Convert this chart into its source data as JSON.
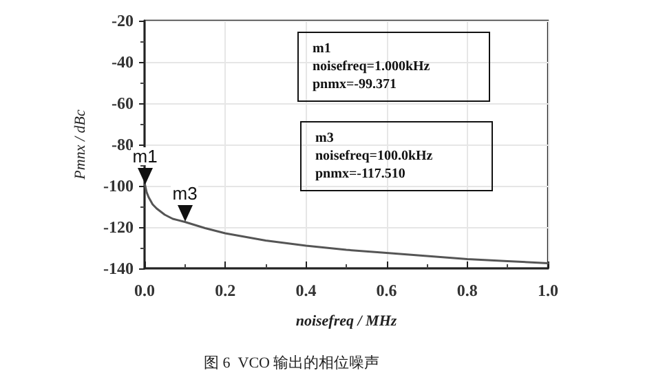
{
  "chart_data": {
    "type": "line",
    "xlabel": "noisefreq / MHz",
    "ylabel": "Pmnx / dBc",
    "x": [
      0.001,
      0.005,
      0.01,
      0.02,
      0.03,
      0.05,
      0.07,
      0.1,
      0.15,
      0.2,
      0.3,
      0.4,
      0.5,
      0.6,
      0.7,
      0.8,
      0.9,
      1.0
    ],
    "series": [
      {
        "color": "#555555",
        "values": [
          -99.4,
          -103,
          -105.5,
          -109,
          -111,
          -114,
          -116,
          -117.5,
          -120.5,
          -123,
          -126.5,
          -129,
          -131,
          -132.5,
          -134,
          -135.5,
          -136.5,
          -137.5
        ]
      }
    ],
    "xlim": [
      0,
      1
    ],
    "xticks": [
      {
        "value": 0,
        "label": "0.0"
      },
      0.2,
      0.4,
      0.6,
      0.8,
      {
        "value": 1,
        "label": "1.0"
      }
    ],
    "ylim": [
      -140,
      -20
    ],
    "yticks": [
      -140,
      -120,
      -100,
      -80,
      -60,
      -40,
      -20
    ],
    "grid": true,
    "marker": "none",
    "line_style": "solid",
    "annotations": [
      {
        "text": "m1",
        "x": 0.001,
        "y": -99.4
      },
      {
        "text": "m3",
        "x": 0.1,
        "y": -117.5
      },
      "m1\nnoisefreq=1.000kHz\npnmx=-99.371",
      "m3\nnoisefreq=100.0kHz\npnmx=-117.510",
      "图 6  VCO 输出的相位噪声"
    ]
  }
}
